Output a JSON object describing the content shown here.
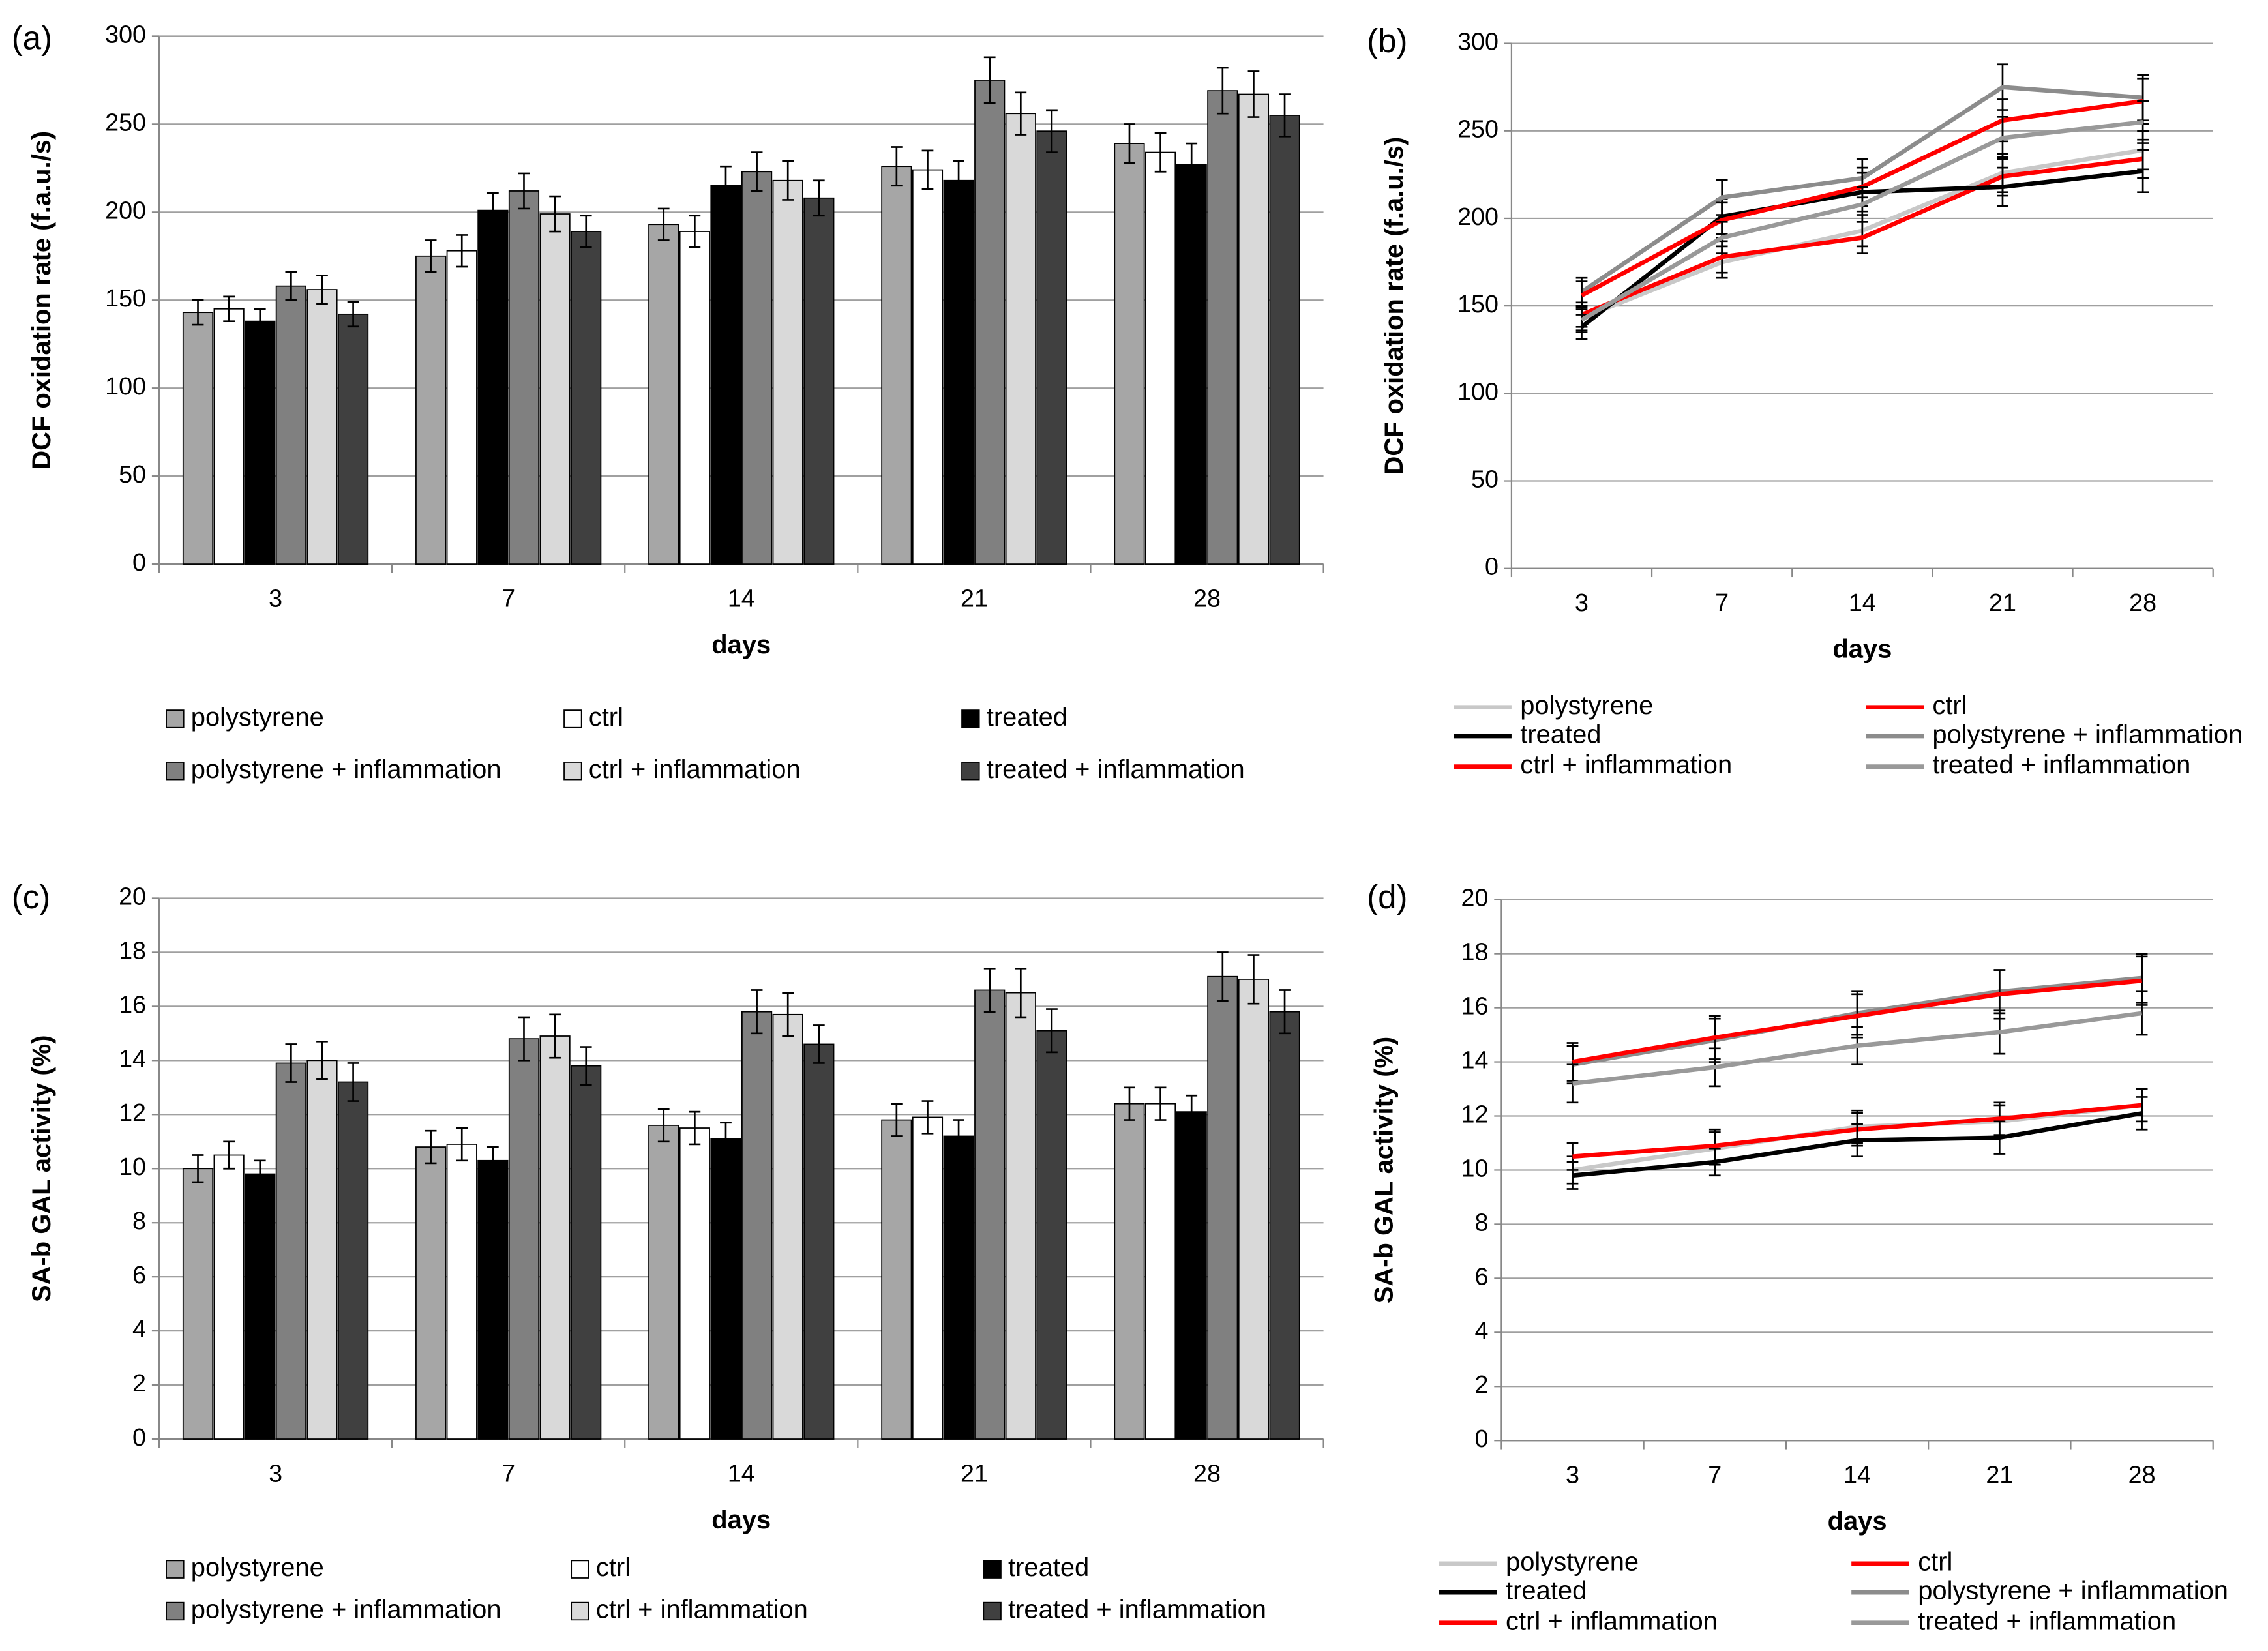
{
  "chart_data": [
    {
      "type": "bar",
      "panel_label": "(a)",
      "ylabel": "DCF oxidation rate (f.a.u./s)",
      "xlabel": "days",
      "categories": [
        "3",
        "7",
        "14",
        "21",
        "28"
      ],
      "ylim": [
        0,
        300
      ],
      "yticks": [
        0,
        50,
        100,
        150,
        200,
        250,
        300
      ],
      "grid": true,
      "series": [
        {
          "name": "polystyrene",
          "color": "#a6a6a6",
          "values": [
            143,
            175,
            193,
            226,
            239
          ],
          "errors": [
            7,
            9,
            9,
            11,
            11
          ]
        },
        {
          "name": "ctrl",
          "color": "#ffffff",
          "values": [
            145,
            178,
            189,
            224,
            234
          ],
          "errors": [
            7,
            9,
            9,
            11,
            11
          ]
        },
        {
          "name": "treated",
          "color": "#000000",
          "values": [
            138,
            201,
            215,
            218,
            227
          ],
          "errors": [
            7,
            10,
            11,
            11,
            12
          ]
        },
        {
          "name": "polystyrene + inflammation",
          "color": "#808080",
          "values": [
            158,
            212,
            223,
            275,
            269
          ],
          "errors": [
            8,
            10,
            11,
            13,
            13
          ]
        },
        {
          "name": "ctrl + inflammation",
          "color": "#d9d9d9",
          "values": [
            156,
            199,
            218,
            256,
            267
          ],
          "errors": [
            8,
            10,
            11,
            12,
            13
          ]
        },
        {
          "name": "treated + inflammation",
          "color": "#404040",
          "values": [
            142,
            189,
            208,
            246,
            255
          ],
          "errors": [
            7,
            9,
            10,
            12,
            12
          ]
        }
      ]
    },
    {
      "type": "line",
      "panel_label": "(b)",
      "ylabel": "DCF oxidation rate (f.a.u./s)",
      "xlabel": "days",
      "categories": [
        "3",
        "7",
        "14",
        "21",
        "28"
      ],
      "ylim": [
        0,
        300
      ],
      "yticks": [
        0,
        50,
        100,
        150,
        200,
        250,
        300
      ],
      "grid": true,
      "series": [
        {
          "name": "polystyrene",
          "color": "#c8c8c8",
          "values": [
            143,
            175,
            193,
            226,
            239
          ],
          "errors": [
            7,
            9,
            9,
            11,
            11
          ]
        },
        {
          "name": "ctrl",
          "color": "#ff0000",
          "values": [
            145,
            178,
            189,
            224,
            234
          ],
          "errors": [
            7,
            9,
            9,
            11,
            11
          ]
        },
        {
          "name": "treated",
          "color": "#000000",
          "values": [
            138,
            201,
            215,
            218,
            227
          ],
          "errors": [
            7,
            10,
            11,
            11,
            12
          ]
        },
        {
          "name": "polystyrene + inflammation",
          "color": "#8c8c8c",
          "values": [
            158,
            212,
            223,
            275,
            269
          ],
          "errors": [
            8,
            10,
            11,
            13,
            13
          ]
        },
        {
          "name": "ctrl + inflammation",
          "color": "#ff0000",
          "values": [
            156,
            199,
            218,
            256,
            267
          ],
          "errors": [
            8,
            10,
            11,
            12,
            13
          ]
        },
        {
          "name": "treated + inflammation",
          "color": "#999999",
          "values": [
            142,
            189,
            208,
            246,
            255
          ],
          "errors": [
            7,
            9,
            10,
            12,
            12
          ]
        }
      ]
    },
    {
      "type": "bar",
      "panel_label": "(c)",
      "ylabel": "SA-b GAL activity (%)",
      "xlabel": "days",
      "categories": [
        "3",
        "7",
        "14",
        "21",
        "28"
      ],
      "ylim": [
        0,
        20
      ],
      "yticks": [
        0,
        2,
        4,
        6,
        8,
        10,
        12,
        14,
        16,
        18,
        20
      ],
      "grid": true,
      "series": [
        {
          "name": "polystyrene",
          "color": "#a6a6a6",
          "values": [
            10,
            10.8,
            11.6,
            11.8,
            12.4
          ],
          "errors": [
            0.5,
            0.6,
            0.6,
            0.6,
            0.6
          ]
        },
        {
          "name": "ctrl",
          "color": "#ffffff",
          "values": [
            10.5,
            10.9,
            11.5,
            11.9,
            12.4
          ],
          "errors": [
            0.5,
            0.6,
            0.6,
            0.6,
            0.6
          ]
        },
        {
          "name": "treated",
          "color": "#000000",
          "values": [
            9.8,
            10.3,
            11.1,
            11.2,
            12.1
          ],
          "errors": [
            0.5,
            0.5,
            0.6,
            0.6,
            0.6
          ]
        },
        {
          "name": "polystyrene + inflammation",
          "color": "#808080",
          "values": [
            13.9,
            14.8,
            15.8,
            16.6,
            17.1
          ],
          "errors": [
            0.7,
            0.8,
            0.8,
            0.8,
            0.9
          ]
        },
        {
          "name": "ctrl + inflammation",
          "color": "#d9d9d9",
          "values": [
            14,
            14.9,
            15.7,
            16.5,
            17
          ],
          "errors": [
            0.7,
            0.8,
            0.8,
            0.9,
            0.9
          ]
        },
        {
          "name": "treated + inflammation",
          "color": "#404040",
          "values": [
            13.2,
            13.8,
            14.6,
            15.1,
            15.8
          ],
          "errors": [
            0.7,
            0.7,
            0.7,
            0.8,
            0.8
          ]
        }
      ]
    },
    {
      "type": "line",
      "panel_label": "(d)",
      "ylabel": "SA-b GAL activity (%)",
      "xlabel": "days",
      "categories": [
        "3",
        "7",
        "14",
        "21",
        "28"
      ],
      "ylim": [
        0,
        20
      ],
      "yticks": [
        0,
        2,
        4,
        6,
        8,
        10,
        12,
        14,
        16,
        18,
        20
      ],
      "grid": true,
      "series": [
        {
          "name": "polystyrene",
          "color": "#c8c8c8",
          "values": [
            10,
            10.8,
            11.6,
            11.8,
            12.4
          ],
          "errors": [
            0.5,
            0.6,
            0.6,
            0.6,
            0.6
          ]
        },
        {
          "name": "ctrl",
          "color": "#ff0000",
          "values": [
            10.5,
            10.9,
            11.5,
            11.9,
            12.4
          ],
          "errors": [
            0.5,
            0.6,
            0.6,
            0.6,
            0.6
          ]
        },
        {
          "name": "treated",
          "color": "#000000",
          "values": [
            9.8,
            10.3,
            11.1,
            11.2,
            12.1
          ],
          "errors": [
            0.5,
            0.5,
            0.6,
            0.6,
            0.6
          ]
        },
        {
          "name": "polystyrene + inflammation",
          "color": "#8c8c8c",
          "values": [
            13.9,
            14.8,
            15.8,
            16.6,
            17.1
          ],
          "errors": [
            0.7,
            0.8,
            0.8,
            0.8,
            0.9
          ]
        },
        {
          "name": "ctrl + inflammation",
          "color": "#ff0000",
          "values": [
            14,
            14.9,
            15.7,
            16.5,
            17
          ],
          "errors": [
            0.7,
            0.8,
            0.8,
            0.9,
            0.9
          ]
        },
        {
          "name": "treated + inflammation",
          "color": "#999999",
          "values": [
            13.2,
            13.8,
            14.6,
            15.1,
            15.8
          ],
          "errors": [
            0.7,
            0.7,
            0.7,
            0.8,
            0.8
          ]
        }
      ]
    }
  ]
}
